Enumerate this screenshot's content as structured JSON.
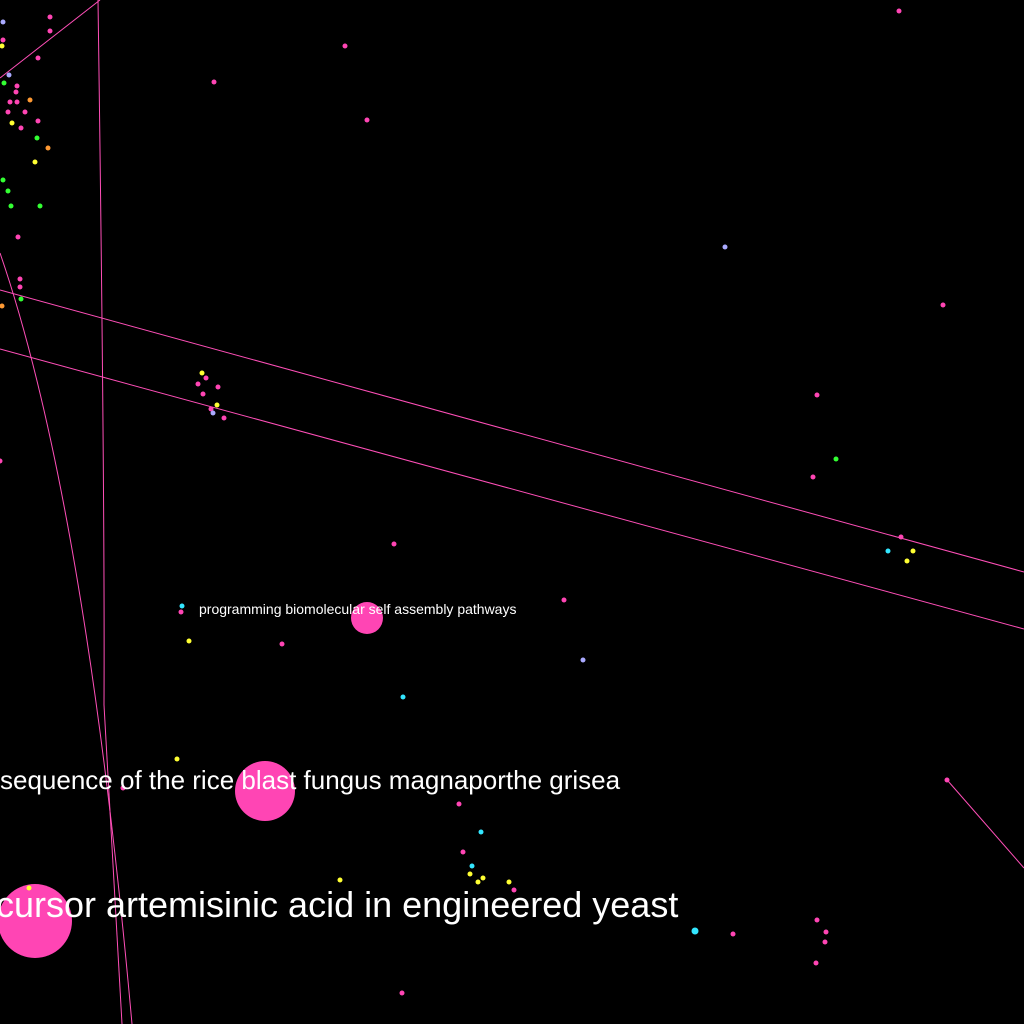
{
  "background_color": "#000000",
  "edge_color": "#ff4fb8",
  "labels": {
    "self_assembly": "programming biomolecular self assembly pathways",
    "rice_blast": "sequence of the rice blast fungus magnaporthe grisea",
    "artemisinic": "cursor artemisinic acid in engineered yeast"
  },
  "palette": {
    "pink": "#ff45b4",
    "yellow": "#ffff33",
    "cyan": "#33e6ff",
    "green": "#33ff33",
    "lavender": "#aaaaff",
    "orange": "#ff9933"
  }
}
